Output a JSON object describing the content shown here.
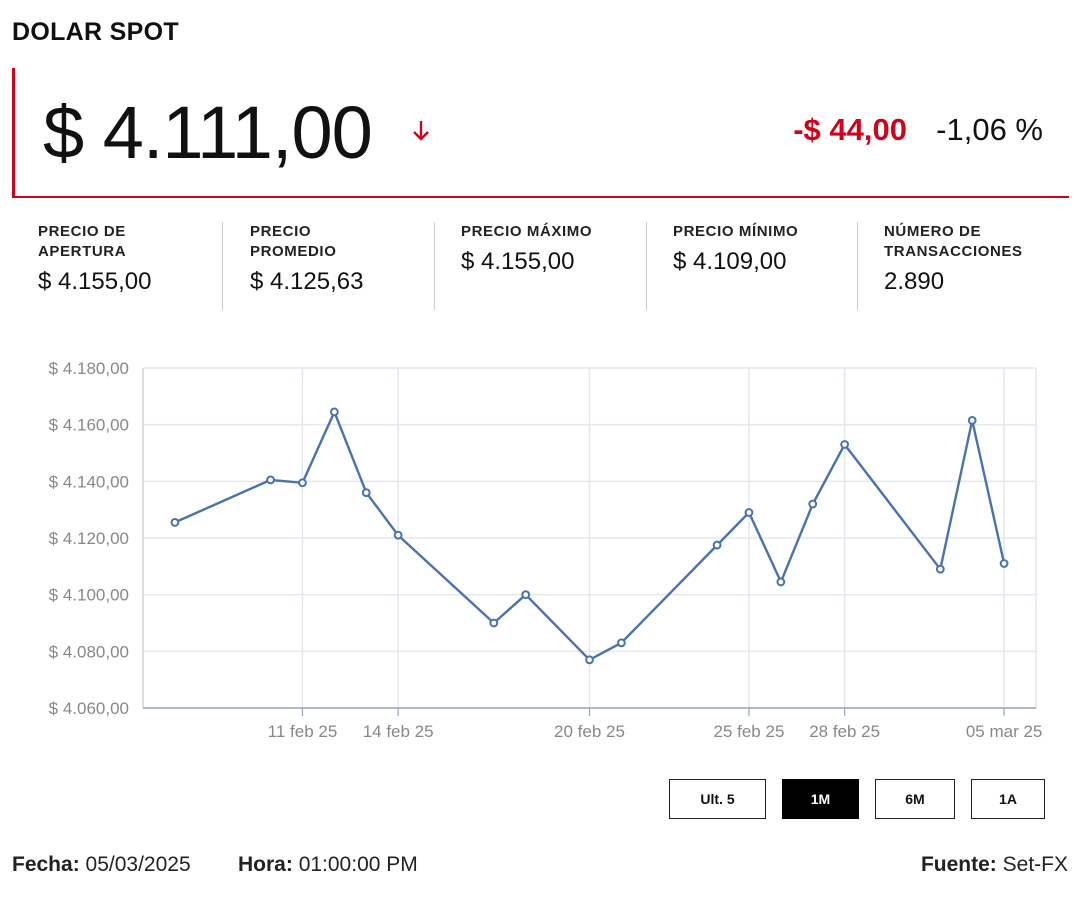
{
  "header": {
    "title": "DOLAR SPOT"
  },
  "quote": {
    "price": "$ 4.111,00",
    "change": "-$ 44,00",
    "change_pct": "-1,06 %",
    "direction_icon": "arrow-down-icon"
  },
  "stats": [
    {
      "label_line1": "PRECIO DE",
      "label_line2": "APERTURA",
      "value": "$ 4.155,00"
    },
    {
      "label_line1": "PRECIO",
      "label_line2": "PROMEDIO",
      "value": "$ 4.125,63"
    },
    {
      "label_line1": "PRECIO MÁXIMO",
      "label_line2": "",
      "value": "$ 4.155,00"
    },
    {
      "label_line1": "PRECIO MÍNIMO",
      "label_line2": "",
      "value": "$ 4.109,00"
    },
    {
      "label_line1": "NÚMERO DE",
      "label_line2": "TRANSACCIONES",
      "value": "2.890"
    }
  ],
  "chart_data": {
    "type": "line",
    "x": [
      "2025-02-07",
      "2025-02-10",
      "2025-02-11",
      "2025-02-12",
      "2025-02-13",
      "2025-02-14",
      "2025-02-17",
      "2025-02-18",
      "2025-02-20",
      "2025-02-21",
      "2025-02-24",
      "2025-02-25",
      "2025-02-26",
      "2025-02-27",
      "2025-02-28",
      "2025-03-03",
      "2025-03-04",
      "2025-03-05"
    ],
    "series": [
      {
        "values": [
          4125.5,
          4140.5,
          4139.5,
          4164.5,
          4136,
          4121,
          4090,
          4100,
          4077,
          4083,
          4117.5,
          4129,
          4104.5,
          4132,
          4153,
          4109,
          4161.5,
          4111
        ]
      }
    ],
    "ylim": [
      4060,
      4180
    ],
    "y_ticks": [
      4060,
      4080,
      4100,
      4120,
      4140,
      4160,
      4180
    ],
    "y_tick_labels": [
      "$ 4.060,00",
      "$ 4.080,00",
      "$ 4.100,00",
      "$ 4.120,00",
      "$ 4.140,00",
      "$ 4.160,00",
      "$ 4.180,00"
    ],
    "x_tick_labels": [
      "11 feb 25",
      "14 feb 25",
      "20 feb 25",
      "25 feb 25",
      "28 feb 25",
      "05 mar 25"
    ],
    "x_tick_dates": [
      "2025-02-11",
      "2025-02-14",
      "2025-02-20",
      "2025-02-25",
      "2025-02-28",
      "2025-03-05"
    ],
    "grid": true,
    "color": "#4a72b0"
  },
  "range_buttons": [
    {
      "label": "Ult. 5",
      "active": false
    },
    {
      "label": "1M",
      "active": true
    },
    {
      "label": "6M",
      "active": false
    },
    {
      "label": "1A",
      "active": false
    }
  ],
  "footer": {
    "date_label": "Fecha:",
    "date_value": "05/03/2025",
    "time_label": "Hora:",
    "time_value": "01:00:00 PM",
    "source_label": "Fuente:",
    "source_value": "Set-FX"
  },
  "colors": {
    "accent": "#d0021b",
    "line": "#4a72b0",
    "grid": "#e3e8ef"
  }
}
